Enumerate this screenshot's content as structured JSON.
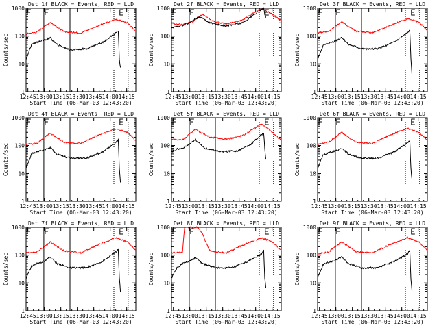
{
  "chart_data": {
    "type": "line",
    "scale": "log",
    "ylim": [
      1,
      1000
    ],
    "ytick_labels": [
      "1",
      "10",
      "100",
      "1000"
    ],
    "xlim_minutes": [
      0,
      100
    ],
    "xtick_labels": [
      "12:45",
      "13:00",
      "13:15",
      "13:30",
      "13:45",
      "14:00",
      "14:15"
    ],
    "xtick_minutes": [
      1.67,
      16.67,
      31.67,
      46.67,
      61.67,
      76.67,
      91.67
    ],
    "xlabel": "Start Time (06-Mar-03 12:43:20)",
    "ylabel": "Counts/sec",
    "series_colors": {
      "events": "#000000",
      "lld": "#ff0000"
    },
    "legend": "BLACK = Events, RED = LLD",
    "markers": {
      "F_minute": 16.2,
      "E_minute": 85.5,
      "solid_lines_minutes": [
        16.2,
        40
      ],
      "dotted_lines_minutes": [
        80,
        93
      ]
    },
    "panels": [
      {
        "title": "Det 1f BLACK = Events, RED = LLD",
        "events": [
          [
            0,
            15
          ],
          [
            5,
            50
          ],
          [
            10,
            60
          ],
          [
            16,
            70
          ],
          [
            22,
            85
          ],
          [
            28,
            50
          ],
          [
            40,
            32
          ],
          [
            55,
            35
          ],
          [
            70,
            60
          ],
          [
            82,
            130
          ],
          [
            84,
            160
          ],
          [
            85,
            15
          ],
          [
            86,
            7
          ]
        ],
        "lld": [
          [
            0,
            120
          ],
          [
            10,
            140
          ],
          [
            22,
            310
          ],
          [
            35,
            140
          ],
          [
            50,
            130
          ],
          [
            65,
            230
          ],
          [
            82,
            400
          ],
          [
            92,
            300
          ],
          [
            100,
            150
          ]
        ]
      },
      {
        "title": "Det 2f BLACK = Events, RED = LLD",
        "events": [
          [
            0,
            200
          ],
          [
            5,
            220
          ],
          [
            10,
            240
          ],
          [
            16,
            300
          ],
          [
            25,
            500
          ],
          [
            35,
            300
          ],
          [
            50,
            230
          ],
          [
            65,
            300
          ],
          [
            80,
            800
          ],
          [
            84,
            1000
          ],
          [
            85,
            600
          ],
          [
            86,
            450
          ]
        ],
        "lld": [
          [
            0,
            280
          ],
          [
            10,
            260
          ],
          [
            20,
            340
          ],
          [
            28,
            600
          ],
          [
            38,
            340
          ],
          [
            50,
            270
          ],
          [
            65,
            380
          ],
          [
            82,
            1000
          ],
          [
            92,
            600
          ],
          [
            100,
            350
          ]
        ]
      },
      {
        "title": "Det 3f BLACK = Events, RED = LLD",
        "events": [
          [
            0,
            15
          ],
          [
            5,
            45
          ],
          [
            10,
            55
          ],
          [
            16,
            65
          ],
          [
            22,
            90
          ],
          [
            28,
            50
          ],
          [
            40,
            35
          ],
          [
            55,
            35
          ],
          [
            70,
            60
          ],
          [
            82,
            130
          ],
          [
            84,
            160
          ],
          [
            85,
            15
          ],
          [
            86,
            4
          ]
        ],
        "lld": [
          [
            0,
            130
          ],
          [
            10,
            150
          ],
          [
            22,
            320
          ],
          [
            35,
            150
          ],
          [
            50,
            130
          ],
          [
            65,
            230
          ],
          [
            82,
            420
          ],
          [
            92,
            320
          ],
          [
            100,
            160
          ]
        ]
      },
      {
        "title": "Det 4f BLACK = Events, RED = LLD",
        "events": [
          [
            0,
            15
          ],
          [
            5,
            50
          ],
          [
            10,
            60
          ],
          [
            16,
            70
          ],
          [
            22,
            85
          ],
          [
            28,
            50
          ],
          [
            40,
            35
          ],
          [
            55,
            35
          ],
          [
            70,
            60
          ],
          [
            82,
            130
          ],
          [
            84,
            160
          ],
          [
            85,
            15
          ],
          [
            86,
            5
          ]
        ],
        "lld": [
          [
            0,
            110
          ],
          [
            10,
            120
          ],
          [
            22,
            280
          ],
          [
            35,
            130
          ],
          [
            50,
            120
          ],
          [
            65,
            230
          ],
          [
            82,
            400
          ],
          [
            92,
            300
          ],
          [
            100,
            150
          ]
        ]
      },
      {
        "title": "Det 5f BLACK = Events, RED = LLD",
        "events": [
          [
            0,
            60
          ],
          [
            5,
            75
          ],
          [
            10,
            80
          ],
          [
            16,
            110
          ],
          [
            22,
            160
          ],
          [
            30,
            80
          ],
          [
            45,
            60
          ],
          [
            60,
            65
          ],
          [
            72,
            110
          ],
          [
            82,
            250
          ],
          [
            84,
            280
          ],
          [
            85,
            80
          ],
          [
            86,
            30
          ]
        ],
        "lld": [
          [
            0,
            170
          ],
          [
            10,
            160
          ],
          [
            22,
            380
          ],
          [
            35,
            200
          ],
          [
            50,
            170
          ],
          [
            65,
            230
          ],
          [
            82,
            600
          ],
          [
            92,
            300
          ],
          [
            100,
            160
          ]
        ]
      },
      {
        "title": "Det 6f BLACK = Events, RED = LLD",
        "events": [
          [
            0,
            15
          ],
          [
            5,
            45
          ],
          [
            10,
            55
          ],
          [
            16,
            65
          ],
          [
            22,
            80
          ],
          [
            28,
            50
          ],
          [
            40,
            35
          ],
          [
            55,
            35
          ],
          [
            70,
            60
          ],
          [
            82,
            130
          ],
          [
            84,
            150
          ],
          [
            85,
            15
          ],
          [
            86,
            6
          ]
        ],
        "lld": [
          [
            0,
            110
          ],
          [
            10,
            130
          ],
          [
            22,
            300
          ],
          [
            35,
            130
          ],
          [
            50,
            120
          ],
          [
            65,
            230
          ],
          [
            82,
            420
          ],
          [
            92,
            300
          ],
          [
            100,
            160
          ]
        ]
      },
      {
        "title": "Det 7f BLACK = Events, RED = LLD",
        "events": [
          [
            0,
            15
          ],
          [
            5,
            40
          ],
          [
            10,
            50
          ],
          [
            16,
            60
          ],
          [
            22,
            85
          ],
          [
            28,
            50
          ],
          [
            40,
            35
          ],
          [
            55,
            35
          ],
          [
            70,
            60
          ],
          [
            82,
            130
          ],
          [
            84,
            160
          ],
          [
            85,
            15
          ],
          [
            86,
            5
          ]
        ],
        "lld": [
          [
            0,
            120
          ],
          [
            10,
            130
          ],
          [
            22,
            290
          ],
          [
            35,
            140
          ],
          [
            50,
            120
          ],
          [
            65,
            230
          ],
          [
            82,
            420
          ],
          [
            92,
            300
          ],
          [
            100,
            150
          ]
        ]
      },
      {
        "title": "Det 8f BLACK = Events, RED = LLD",
        "events": [
          [
            0,
            15
          ],
          [
            5,
            35
          ],
          [
            10,
            50
          ],
          [
            16,
            60
          ],
          [
            22,
            80
          ],
          [
            28,
            50
          ],
          [
            40,
            35
          ],
          [
            55,
            35
          ],
          [
            70,
            60
          ],
          [
            82,
            110
          ],
          [
            84,
            160
          ],
          [
            85,
            15
          ],
          [
            86,
            7
          ]
        ],
        "lld": [
          [
            0,
            120
          ],
          [
            10,
            130
          ],
          [
            12,
            1000
          ],
          [
            24,
            1000
          ],
          [
            28,
            600
          ],
          [
            35,
            140
          ],
          [
            50,
            120
          ],
          [
            65,
            230
          ],
          [
            82,
            420
          ],
          [
            92,
            300
          ],
          [
            100,
            150
          ]
        ]
      },
      {
        "title": "Det 9f BLACK = Events, RED = LLD",
        "events": [
          [
            0,
            15
          ],
          [
            5,
            45
          ],
          [
            10,
            55
          ],
          [
            16,
            65
          ],
          [
            22,
            85
          ],
          [
            28,
            50
          ],
          [
            40,
            35
          ],
          [
            55,
            35
          ],
          [
            70,
            60
          ],
          [
            82,
            110
          ],
          [
            84,
            150
          ],
          [
            85,
            15
          ],
          [
            86,
            5
          ]
        ],
        "lld": [
          [
            0,
            110
          ],
          [
            10,
            130
          ],
          [
            22,
            300
          ],
          [
            35,
            130
          ],
          [
            50,
            120
          ],
          [
            65,
            230
          ],
          [
            82,
            420
          ],
          [
            92,
            300
          ],
          [
            100,
            150
          ]
        ]
      }
    ]
  }
}
